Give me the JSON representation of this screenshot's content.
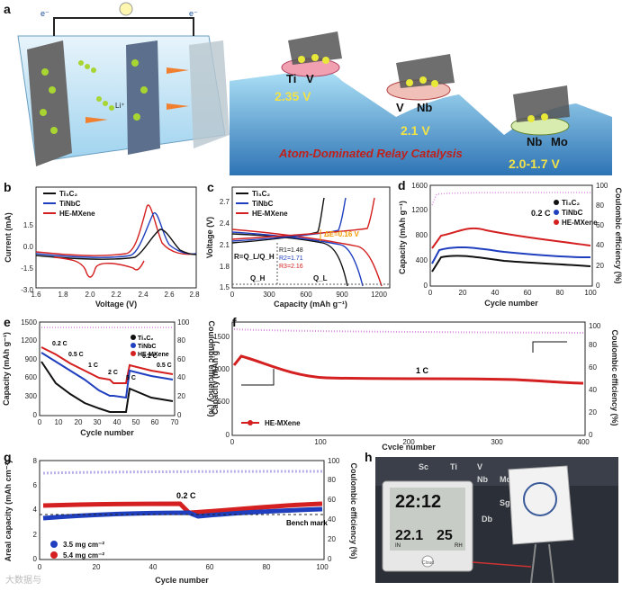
{
  "colors": {
    "ti3c2": "#111111",
    "tinbc": "#1f3fbf",
    "hemx": "#d42020",
    "ce": "#d98be0",
    "accent_text": "#c0201a",
    "voltage_text": "#f2e24a"
  },
  "panel_a": {
    "label": "a",
    "electron1": "e⁻",
    "electron2": "e⁻",
    "li": "Li⁺",
    "caption": "Atom-Dominated Relay Catalysis",
    "steps": [
      {
        "metals": [
          "Ti",
          "V"
        ],
        "voltage": "2.35 V"
      },
      {
        "metals": [
          "V",
          "Nb"
        ],
        "voltage": "2.1 V"
      },
      {
        "metals": [
          "Nb",
          "Mo"
        ],
        "voltage": "2.0-1.7 V"
      }
    ]
  },
  "panel_b": {
    "label": "b",
    "xlabel": "Voltage (V)",
    "ylabel": "Current (mA)",
    "xticks": [
      "1.6",
      "1.8",
      "2.0",
      "2.2",
      "2.4",
      "2.6",
      "2.8"
    ],
    "yticks": [
      "1.5",
      "0.0",
      "-1.5",
      "-3.0"
    ],
    "legend": [
      "Ti₃C₂",
      "TiNbC",
      "HE-MXene"
    ]
  },
  "panel_c": {
    "label": "c",
    "xlabel": "Capacity (mAh g⁻¹)",
    "ylabel": "Voltage (V)",
    "xticks": [
      "0",
      "300",
      "600",
      "900",
      "1200"
    ],
    "yticks": [
      "2.7",
      "2.4",
      "2.1",
      "1.8",
      "1.5"
    ],
    "legend": [
      "Ti₃C₂",
      "TiNbC",
      "HE-MXene"
    ],
    "delta": "ΔE=0.16 V",
    "ratio": "R=Q_L/Q_H",
    "r1": "R1=1.48",
    "r2": "R2=1.71",
    "r3": "R3=2.16",
    "qh": "Q_H",
    "ql": "Q_L"
  },
  "panel_d": {
    "label": "d",
    "xlabel": "Cycle number",
    "ylabel": "Capacity (mAh g⁻¹)",
    "ylabel2": "Coulombic efficiency (%)",
    "xticks": [
      "0",
      "20",
      "40",
      "60",
      "80",
      "100"
    ],
    "yticks": [
      "0",
      "400",
      "800",
      "1200",
      "1600"
    ],
    "y2ticks": [
      "0",
      "20",
      "40",
      "60",
      "80",
      "100"
    ],
    "legend": [
      "Ti₃C₂",
      "TiNbC",
      "HE-MXene"
    ],
    "rate": "0.2 C"
  },
  "panel_e": {
    "label": "e",
    "xlabel": "Cycle number",
    "ylabel": "Capacity (mAh g⁻¹)",
    "ylabel2": "Coulombic efficiency (%)",
    "xticks": [
      "0",
      "10",
      "20",
      "30",
      "40",
      "50",
      "60",
      "70"
    ],
    "yticks": [
      "0",
      "300",
      "600",
      "900",
      "1200",
      "1500"
    ],
    "y2ticks": [
      "0",
      "20",
      "40",
      "60",
      "80",
      "100"
    ],
    "legend": [
      "Ti₃C₂",
      "TiNbC",
      "HE-MXene"
    ],
    "rates": [
      "0.2 C",
      "0.5 C",
      "1 C",
      "2 C",
      "5 C",
      "0.2 C",
      "0.5 C"
    ]
  },
  "panel_f": {
    "label": "f",
    "xlabel": "Cycle number",
    "ylabel": "Capacity (mAh g⁻¹)",
    "ylabel2": "Coulombic efficiency (%)",
    "xticks": [
      "0",
      "100",
      "200",
      "300",
      "400"
    ],
    "yticks": [
      "0",
      "500",
      "1000",
      "1500"
    ],
    "y2ticks": [
      "0",
      "20",
      "40",
      "60",
      "80",
      "100"
    ],
    "legend": "HE-MXene",
    "rate": "1 C"
  },
  "panel_g": {
    "label": "g",
    "xlabel": "Cycle number",
    "ylabel": "Areal capacity (mAh cm⁻²)",
    "ylabel2": "Coulombic efficiency (%)",
    "xticks": [
      "0",
      "20",
      "40",
      "60",
      "80",
      "100"
    ],
    "yticks": [
      "0",
      "2",
      "4",
      "6",
      "8"
    ],
    "y2ticks": [
      "0",
      "20",
      "40",
      "60",
      "80",
      "100"
    ],
    "legend": [
      "3.5 mg cm⁻²",
      "5.4 mg cm⁻²"
    ],
    "rate": "0.2 C",
    "bench": "Bench mark"
  },
  "panel_h": {
    "label": "h",
    "time": "22:12",
    "temp": "22.1",
    "humidity": "25",
    "indoor": "IN",
    "unit": "RH",
    "brand": "Cloud",
    "table": [
      "Sc",
      "Ti",
      "V",
      "Nb",
      "Mo",
      "Sg",
      "Db"
    ]
  },
  "watermark": "大数据与"
}
